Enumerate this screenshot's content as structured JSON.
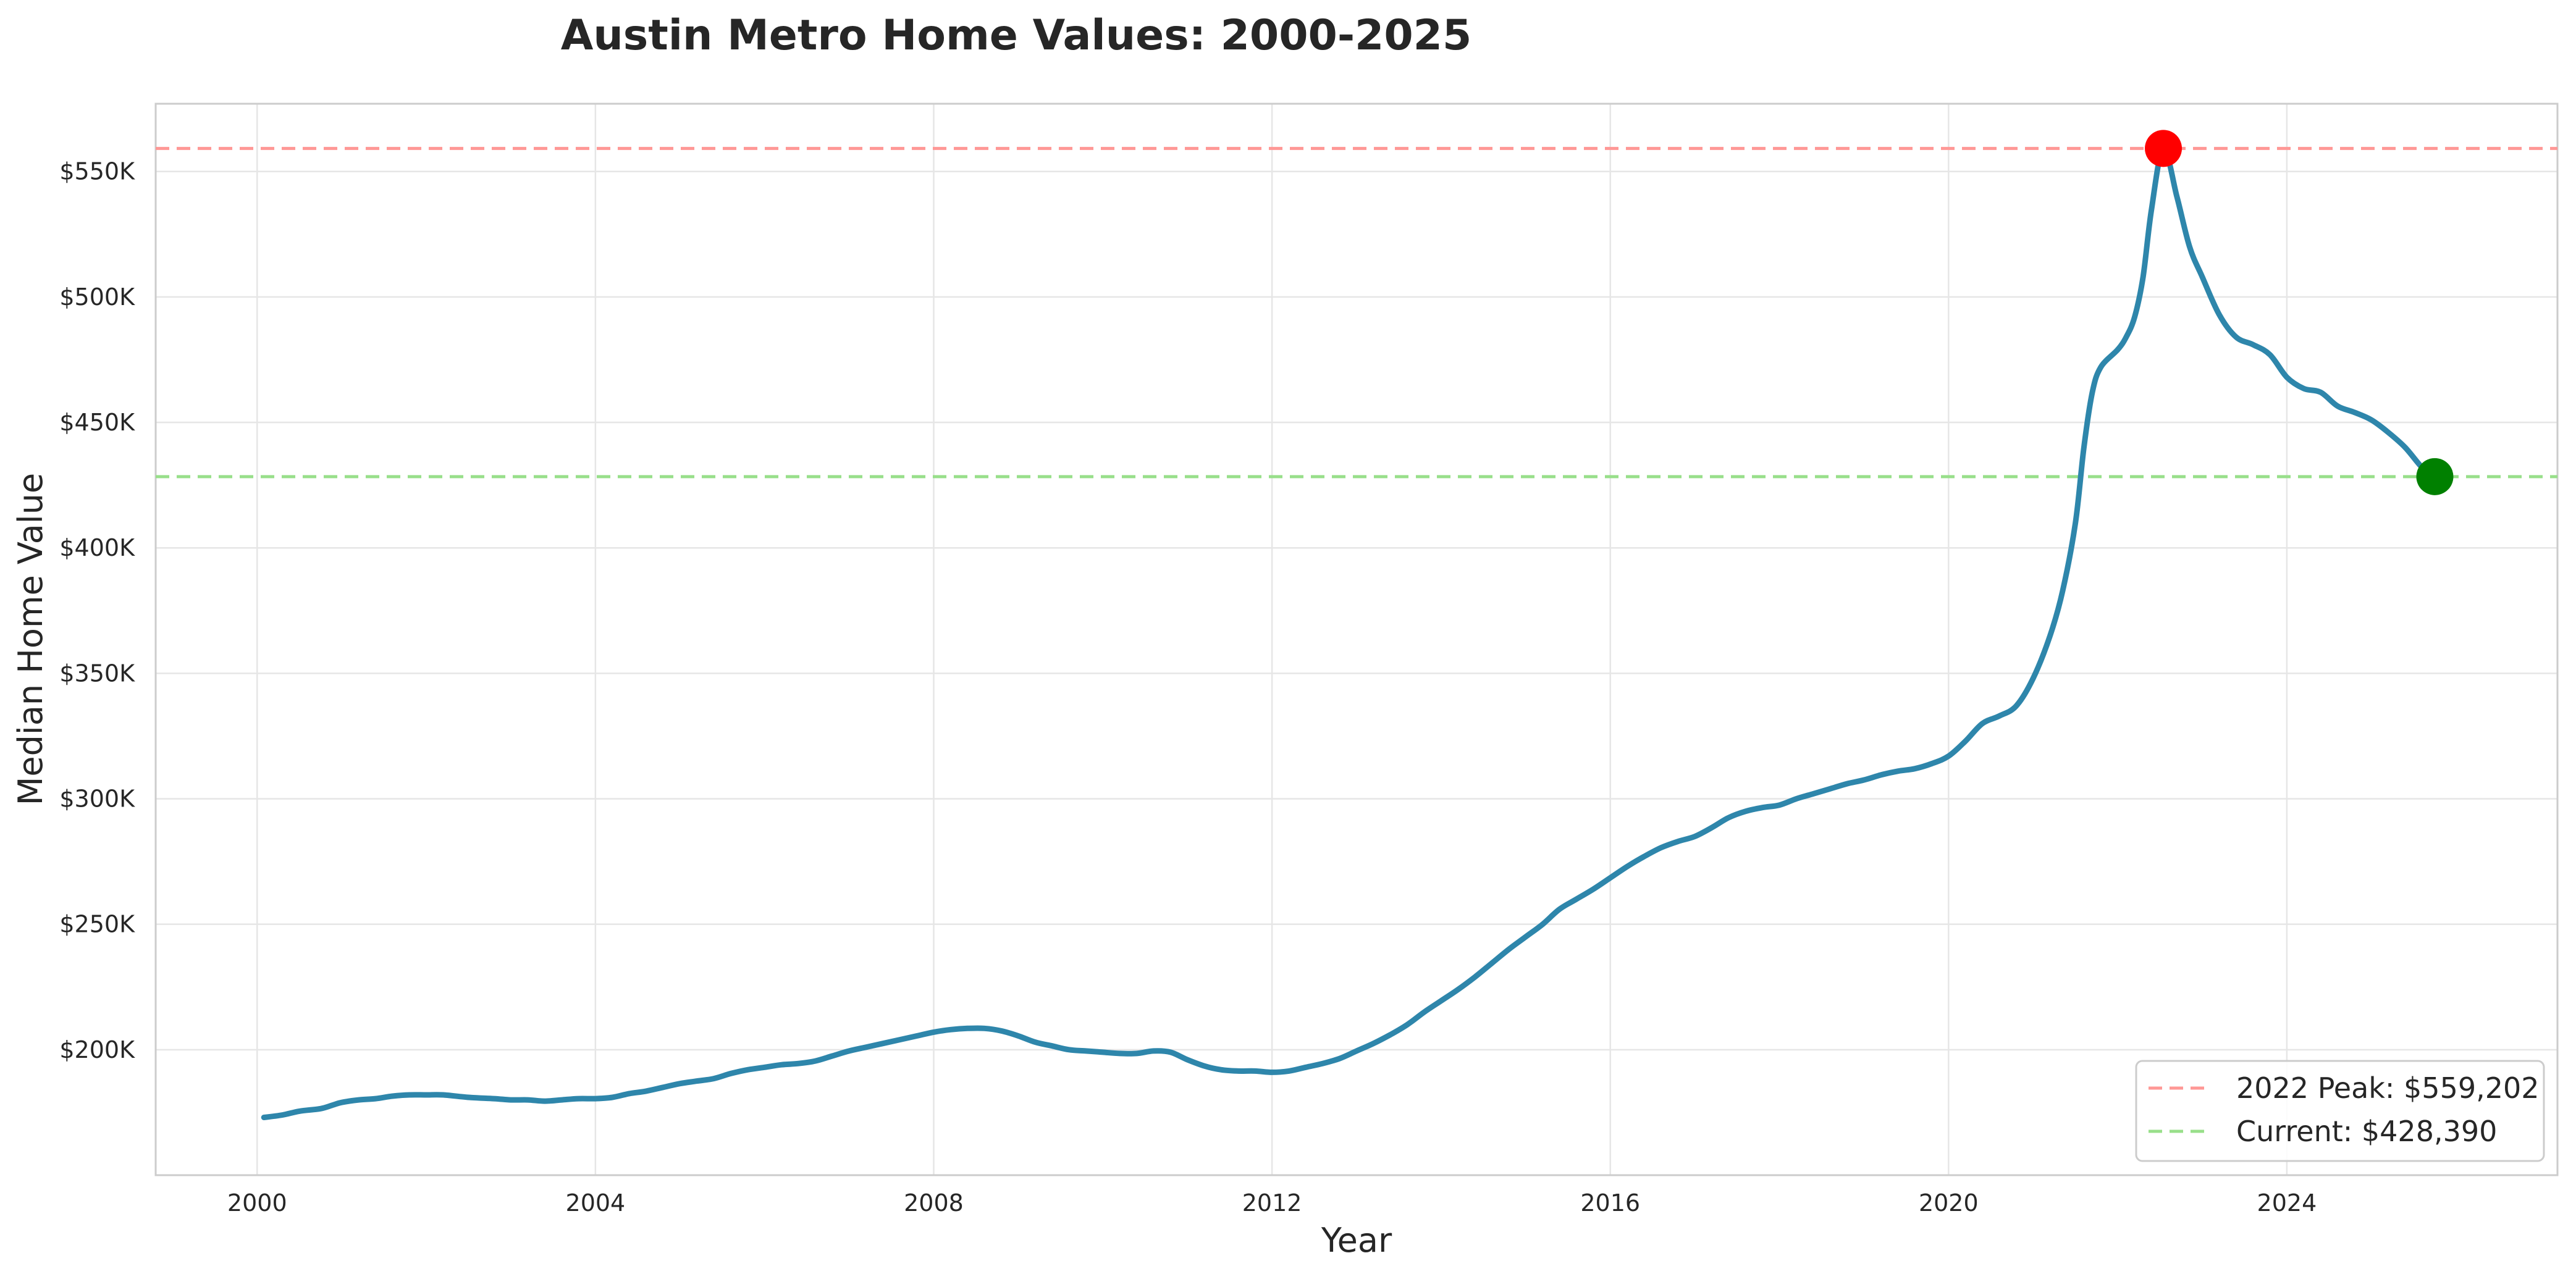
{
  "chart_data": {
    "type": "line",
    "title": "Austin Metro Home Values: 2000-2025",
    "xlabel": "Year",
    "ylabel": "Median Home Value",
    "xlim": [
      1998.8,
      2027.2
    ],
    "ylim": [
      150000,
      577000
    ],
    "x_ticks": [
      2000,
      2004,
      2008,
      2012,
      2016,
      2020,
      2024
    ],
    "x_tick_labels": [
      "2000",
      "2004",
      "2008",
      "2012",
      "2016",
      "2020",
      "2024"
    ],
    "y_ticks": [
      200000,
      250000,
      300000,
      350000,
      400000,
      450000,
      500000,
      550000
    ],
    "y_tick_labels": [
      "$200K",
      "$250K",
      "$300K",
      "$350K",
      "$400K",
      "$450K",
      "$500K",
      "$550K"
    ],
    "grid": true,
    "legend_position": "bottom-right",
    "series": [
      {
        "color": "#2e86ab",
        "points": [
          [
            2000.08,
            173000
          ],
          [
            2000.3,
            174000
          ],
          [
            2000.5,
            175500
          ],
          [
            2000.75,
            176500
          ],
          [
            2000.9,
            178000
          ],
          [
            2001.0,
            179000
          ],
          [
            2001.2,
            180000
          ],
          [
            2001.4,
            180500
          ],
          [
            2001.6,
            181500
          ],
          [
            2001.8,
            182000
          ],
          [
            2002.0,
            182000
          ],
          [
            2002.2,
            182000
          ],
          [
            2002.5,
            181000
          ],
          [
            2002.8,
            180500
          ],
          [
            2003.0,
            180000
          ],
          [
            2003.2,
            180000
          ],
          [
            2003.4,
            179500
          ],
          [
            2003.6,
            180000
          ],
          [
            2003.8,
            180500
          ],
          [
            2004.0,
            180500
          ],
          [
            2004.2,
            181000
          ],
          [
            2004.4,
            182500
          ],
          [
            2004.6,
            183500
          ],
          [
            2004.8,
            185000
          ],
          [
            2005.0,
            186500
          ],
          [
            2005.2,
            187500
          ],
          [
            2005.4,
            188500
          ],
          [
            2005.6,
            190500
          ],
          [
            2005.8,
            192000
          ],
          [
            2006.0,
            193000
          ],
          [
            2006.2,
            194000
          ],
          [
            2006.4,
            194500
          ],
          [
            2006.6,
            195500
          ],
          [
            2006.8,
            197500
          ],
          [
            2007.0,
            199500
          ],
          [
            2007.2,
            201000
          ],
          [
            2007.4,
            202500
          ],
          [
            2007.6,
            204000
          ],
          [
            2007.8,
            205500
          ],
          [
            2008.0,
            207000
          ],
          [
            2008.2,
            208000
          ],
          [
            2008.4,
            208500
          ],
          [
            2008.6,
            208500
          ],
          [
            2008.8,
            207500
          ],
          [
            2009.0,
            205500
          ],
          [
            2009.2,
            203000
          ],
          [
            2009.4,
            201500
          ],
          [
            2009.6,
            200000
          ],
          [
            2009.8,
            199500
          ],
          [
            2010.0,
            199000
          ],
          [
            2010.2,
            198500
          ],
          [
            2010.4,
            198500
          ],
          [
            2010.6,
            199500
          ],
          [
            2010.8,
            199000
          ],
          [
            2011.0,
            196000
          ],
          [
            2011.2,
            193500
          ],
          [
            2011.4,
            192000
          ],
          [
            2011.6,
            191500
          ],
          [
            2011.8,
            191500
          ],
          [
            2012.0,
            191000
          ],
          [
            2012.2,
            191500
          ],
          [
            2012.4,
            193000
          ],
          [
            2012.6,
            194500
          ],
          [
            2012.8,
            196500
          ],
          [
            2013.0,
            199500
          ],
          [
            2013.2,
            202500
          ],
          [
            2013.4,
            206000
          ],
          [
            2013.6,
            210000
          ],
          [
            2013.8,
            215000
          ],
          [
            2014.0,
            219500
          ],
          [
            2014.2,
            224000
          ],
          [
            2014.4,
            229000
          ],
          [
            2014.6,
            234500
          ],
          [
            2014.8,
            240000
          ],
          [
            2015.0,
            245000
          ],
          [
            2015.2,
            250000
          ],
          [
            2015.4,
            256000
          ],
          [
            2015.6,
            260000
          ],
          [
            2015.8,
            264000
          ],
          [
            2016.0,
            268500
          ],
          [
            2016.2,
            273000
          ],
          [
            2016.4,
            277000
          ],
          [
            2016.6,
            280500
          ],
          [
            2016.8,
            283000
          ],
          [
            2017.0,
            285000
          ],
          [
            2017.2,
            288500
          ],
          [
            2017.4,
            292500
          ],
          [
            2017.6,
            295000
          ],
          [
            2017.8,
            296500
          ],
          [
            2018.0,
            297500
          ],
          [
            2018.2,
            300000
          ],
          [
            2018.4,
            302000
          ],
          [
            2018.6,
            304000
          ],
          [
            2018.8,
            306000
          ],
          [
            2019.0,
            307500
          ],
          [
            2019.2,
            309500
          ],
          [
            2019.4,
            311000
          ],
          [
            2019.6,
            312000
          ],
          [
            2019.8,
            314000
          ],
          [
            2020.0,
            317000
          ],
          [
            2020.2,
            323000
          ],
          [
            2020.4,
            330000
          ],
          [
            2020.6,
            333000
          ],
          [
            2020.8,
            337000
          ],
          [
            2021.0,
            348000
          ],
          [
            2021.2,
            365000
          ],
          [
            2021.35,
            383000
          ],
          [
            2021.5,
            410000
          ],
          [
            2021.6,
            440000
          ],
          [
            2021.7,
            462000
          ],
          [
            2021.8,
            472000
          ],
          [
            2022.0,
            479000
          ],
          [
            2022.1,
            484000
          ],
          [
            2022.2,
            492000
          ],
          [
            2022.3,
            508000
          ],
          [
            2022.4,
            535000
          ],
          [
            2022.54,
            559202
          ],
          [
            2022.7,
            540000
          ],
          [
            2022.85,
            520000
          ],
          [
            2023.0,
            508000
          ],
          [
            2023.2,
            493000
          ],
          [
            2023.4,
            484000
          ],
          [
            2023.6,
            481000
          ],
          [
            2023.8,
            477000
          ],
          [
            2024.0,
            468000
          ],
          [
            2024.2,
            463500
          ],
          [
            2024.4,
            462000
          ],
          [
            2024.6,
            456500
          ],
          [
            2024.8,
            454000
          ],
          [
            2025.0,
            451000
          ],
          [
            2025.2,
            446000
          ],
          [
            2025.4,
            440000
          ],
          [
            2025.6,
            432000
          ],
          [
            2025.75,
            428390
          ]
        ]
      }
    ],
    "reference_lines": [
      {
        "label": "2022 Peak: $559,202",
        "value": 559202,
        "color": "#ff9896"
      },
      {
        "label": "Current: $428,390",
        "value": 428390,
        "color": "#98df8a"
      }
    ],
    "markers": [
      {
        "x": 2022.54,
        "y": 559202,
        "color": "#ff0000"
      },
      {
        "x": 2025.75,
        "y": 428390,
        "color": "#008000"
      }
    ]
  }
}
